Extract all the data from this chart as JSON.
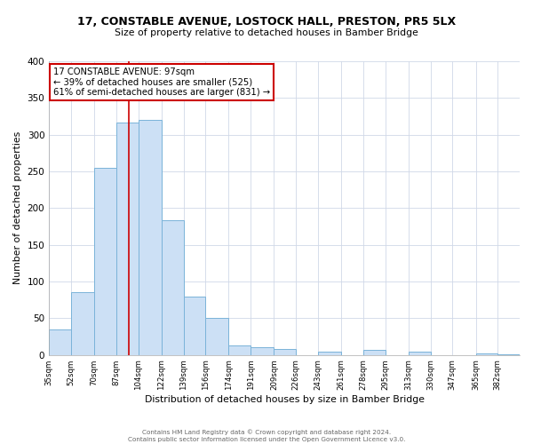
{
  "title": "17, CONSTABLE AVENUE, LOSTOCK HALL, PRESTON, PR5 5LX",
  "subtitle": "Size of property relative to detached houses in Bamber Bridge",
  "xlabel": "Distribution of detached houses by size in Bamber Bridge",
  "ylabel": "Number of detached properties",
  "footer_line1": "Contains HM Land Registry data © Crown copyright and database right 2024.",
  "footer_line2": "Contains public sector information licensed under the Open Government Licence v3.0.",
  "bin_labels": [
    "35sqm",
    "52sqm",
    "70sqm",
    "87sqm",
    "104sqm",
    "122sqm",
    "139sqm",
    "156sqm",
    "174sqm",
    "191sqm",
    "209sqm",
    "226sqm",
    "243sqm",
    "261sqm",
    "278sqm",
    "295sqm",
    "313sqm",
    "330sqm",
    "347sqm",
    "365sqm",
    "382sqm"
  ],
  "bin_values": [
    35,
    85,
    255,
    317,
    320,
    183,
    80,
    50,
    13,
    10,
    8,
    0,
    5,
    0,
    7,
    0,
    5,
    0,
    0,
    2,
    1
  ],
  "bar_color": "#cce0f5",
  "bar_edge_color": "#7ab3d9",
  "grid_color": "#d0d8e8",
  "background_color": "#ffffff",
  "property_size": 97,
  "property_label": "17 CONSTABLE AVENUE: 97sqm",
  "annotation_line1": "← 39% of detached houses are smaller (525)",
  "annotation_line2": "61% of semi-detached houses are larger (831) →",
  "red_line_color": "#cc0000",
  "annotation_box_edge": "#cc0000",
  "ylim": [
    0,
    400
  ],
  "yticks": [
    0,
    50,
    100,
    150,
    200,
    250,
    300,
    350,
    400
  ],
  "bin_edges": [
    35,
    52,
    70,
    87,
    104,
    122,
    139,
    156,
    174,
    191,
    209,
    226,
    243,
    261,
    278,
    295,
    313,
    330,
    347,
    365,
    382,
    399
  ]
}
